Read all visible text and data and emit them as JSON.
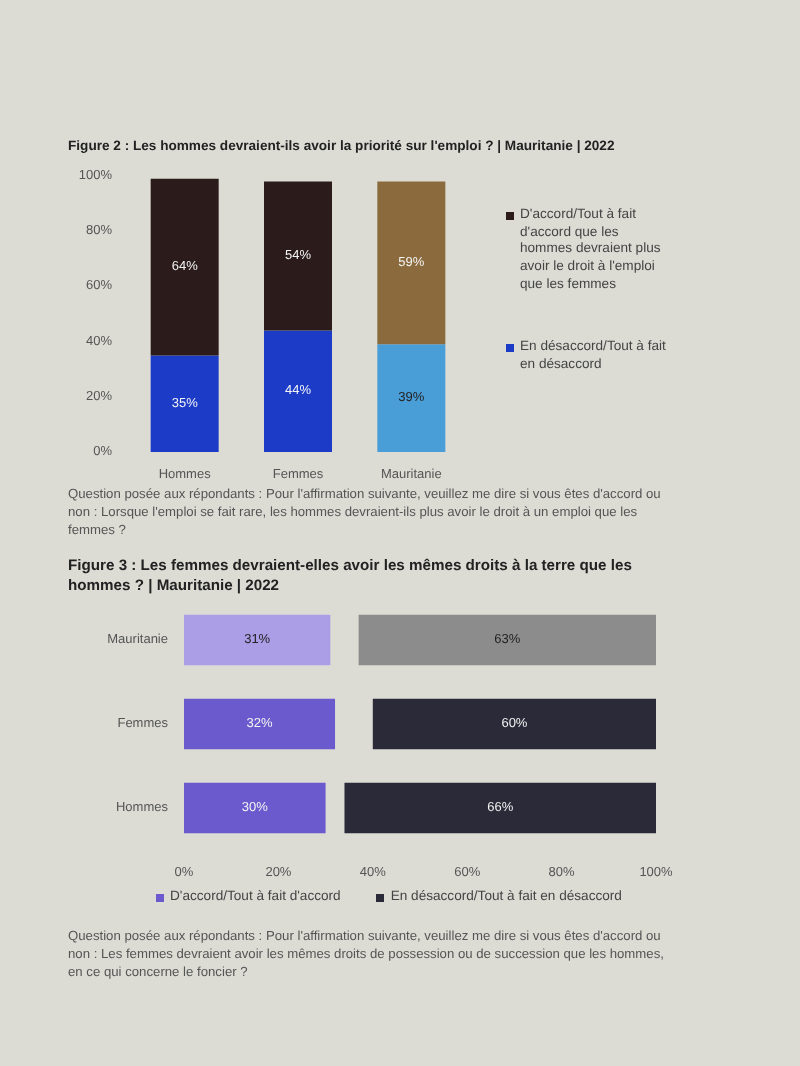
{
  "chart_data": [
    {
      "type": "bar",
      "title": "Figure 2 : Les hommes devraient-ils avoir la priorité sur l'emploi ? | Mauritanie | 2022",
      "categories": [
        "Hommes",
        "Femmes",
        "Mauritanie"
      ],
      "stacked": true,
      "series": [
        {
          "name": "En désaccord/Tout à fait en désaccord",
          "color": "#1c3cc8",
          "colors": [
            "#1c3cc8",
            "#1c3cc8",
            "#4a9ed8"
          ],
          "values": [
            35,
            44,
            39
          ],
          "value_labels": [
            "35%",
            "44%",
            "39%"
          ]
        },
        {
          "name": "D'accord/Tout à fait d'accord que les hommes devraient plus avoir le droit à l'emploi que les femmes",
          "color": "#2b1b1b",
          "colors": [
            "#2b1b1b",
            "#2b1b1b",
            "#8b6b3d"
          ],
          "values": [
            64,
            54,
            59
          ],
          "value_labels": [
            "64%",
            "54%",
            "59%"
          ]
        }
      ],
      "ylim": [
        0,
        100
      ],
      "yticks": [
        {
          "value": 0,
          "label": "0%"
        },
        {
          "value": 20,
          "label": "20%"
        },
        {
          "value": 40,
          "label": "40%"
        },
        {
          "value": 60,
          "label": "60%"
        },
        {
          "value": 80,
          "label": "80%"
        },
        {
          "value": 100,
          "label": "100%"
        }
      ],
      "legend": "right",
      "annotations": [
        "Question posée aux répondants : Pour l'affirmation suivante, veuillez me dire si vous êtes d'accord ou non : Lorsque l'emploi se fait rare, les hommes devraient-ils plus avoir le droit à un emploi que les femmes ?"
      ]
    },
    {
      "type": "bar",
      "orientation": "horizontal",
      "title": "Figure 3 : Les femmes devraient-elles avoir les mêmes droits à la terre que les hommes ? | Mauritanie | 2022",
      "categories": [
        "Mauritanie",
        "Femmes",
        "Hommes"
      ],
      "series": [
        {
          "name": "D'accord/Tout à fait d'accord",
          "color": "#6a5acd",
          "colors": [
            "#ab9de6",
            "#6a5acd",
            "#6a5acd"
          ],
          "base": [
            0,
            0,
            0
          ],
          "values": [
            31,
            32,
            30
          ],
          "value_labels": [
            "31%",
            "32%",
            "30%"
          ]
        },
        {
          "name": "En désaccord/Tout à fait en désaccord",
          "color": "#2a2a38",
          "colors": [
            "#8c8c8c",
            "#2a2a38",
            "#2a2a38"
          ],
          "base": [
            37,
            40,
            34
          ],
          "values": [
            63,
            60,
            66
          ],
          "value_labels": [
            "63%",
            "60%",
            "66%"
          ]
        }
      ],
      "xlim": [
        0,
        100
      ],
      "xticks": [
        {
          "value": 0,
          "label": "0%"
        },
        {
          "value": 20,
          "label": "20%"
        },
        {
          "value": 40,
          "label": "40%"
        },
        {
          "value": 60,
          "label": "60%"
        },
        {
          "value": 80,
          "label": "80%"
        },
        {
          "value": 100,
          "label": "100%"
        }
      ],
      "legend": "bottom",
      "annotations": [
        "Question posée aux répondants : Pour l'affirmation suivante, veuillez me dire si vous êtes d'accord ou non : Les femmes devraient avoir les mêmes droits de possession ou de succession que les hommes, en ce qui concerne le foncier ?"
      ]
    }
  ]
}
